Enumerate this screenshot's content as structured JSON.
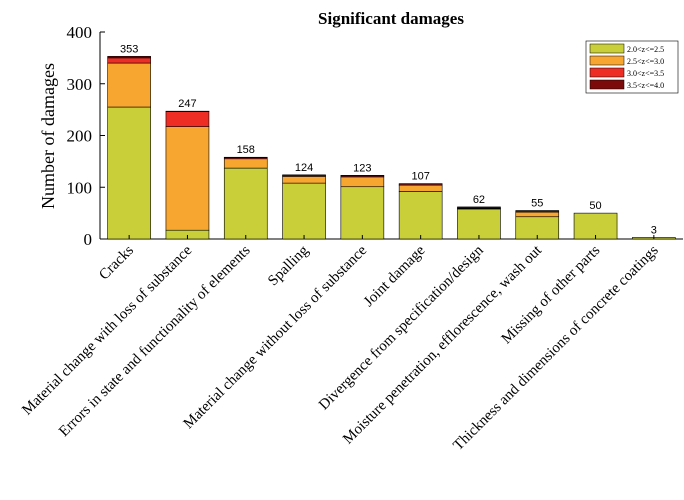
{
  "chart_data": {
    "type": "bar",
    "stacked": true,
    "title": "Significant damages",
    "xlabel": "",
    "ylabel": "Number of damages",
    "ylim": [
      0,
      400
    ],
    "yticks": [
      0,
      100,
      200,
      300,
      400
    ],
    "grid": false,
    "legend_position": "top-right",
    "categories": [
      "Cracks",
      "Material change with loss of substance",
      "Errors in state and functionality of elements",
      "Spalling",
      "Material change without loss of substance",
      "Joint damage",
      "Divergence from specification/design",
      "Moisture penetration, efflorescence, wash out",
      "Missing of other parts",
      "Thickness and dimensions of concrete coatings"
    ],
    "totals": [
      353,
      247,
      158,
      124,
      123,
      107,
      62,
      55,
      50,
      3
    ],
    "series": [
      {
        "name": "2.0<z<=2.5",
        "color": "#c8cf38",
        "values": [
          255,
          17,
          137,
          108,
          101,
          92,
          58,
          43,
          50,
          3
        ]
      },
      {
        "name": "2.5<z<=3.0",
        "color": "#f7a630",
        "values": [
          85,
          200,
          18,
          13,
          19,
          12,
          1,
          9,
          0,
          0
        ]
      },
      {
        "name": "3.0<z<=3.5",
        "color": "#ee2e24",
        "values": [
          10,
          29,
          2,
          2,
          2,
          2,
          1,
          2,
          0,
          0
        ]
      },
      {
        "name": "3.5<z<=4.0",
        "color": "#7d0a0a",
        "values": [
          3,
          1,
          1,
          1,
          1,
          1,
          2,
          1,
          0,
          0
        ]
      }
    ]
  }
}
